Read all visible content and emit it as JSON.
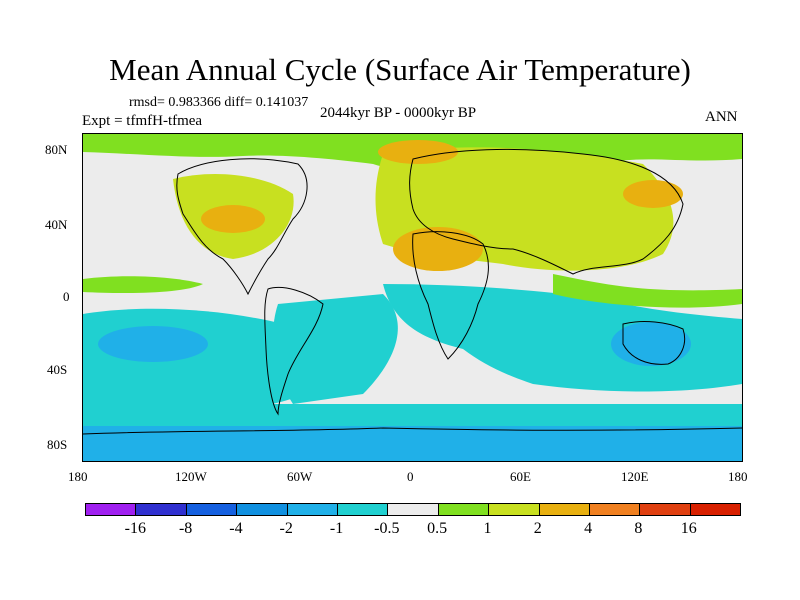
{
  "title": "Mean Annual Cycle (Surface Air Temperature)",
  "stats": "rmsd= 0.983366 diff= 0.141037",
  "experiment": "Expt = tfmfH-tfmea",
  "period": "2044kyr BP - 0000kyr BP",
  "season": "ANN",
  "lat_labels": [
    "80N",
    "40N",
    "0",
    "40S",
    "80S"
  ],
  "lon_labels": [
    "180",
    "120W",
    "60W",
    "0",
    "60E",
    "120E",
    "180"
  ],
  "colorbar": {
    "labels": [
      "-16",
      "-8",
      "-4",
      "-2",
      "-1",
      "-0.5",
      "0.5",
      "1",
      "2",
      "4",
      "8",
      "16"
    ],
    "colors": [
      "#a020f0",
      "#3030d0",
      "#1560e0",
      "#1090e0",
      "#20b0e8",
      "#20d0d0",
      "#ececec",
      "#80e020",
      "#c8e020",
      "#e8b010",
      "#f08020",
      "#e04010",
      "#d82000"
    ]
  },
  "map_colors": {
    "ocean_neutral": "#ececec",
    "cool_light": "#20d0d0",
    "cool_mid": "#20b0e8",
    "warm_light": "#80e020",
    "warm_mid": "#c8e020",
    "warm_high": "#e8b010"
  }
}
